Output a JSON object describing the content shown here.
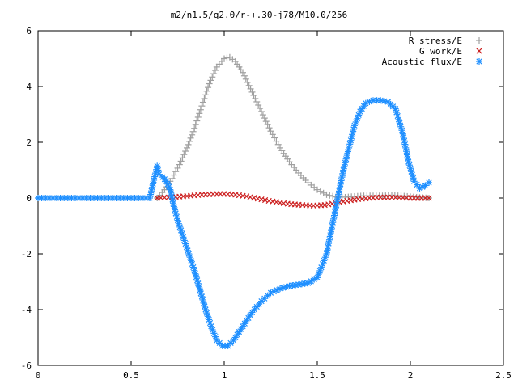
{
  "chart_data": {
    "type": "scatter",
    "title": "m2/n1.5/q2.0/r-+.30-j78/M10.0/256",
    "xlabel": "",
    "ylabel": "",
    "xlim": [
      0,
      2.5
    ],
    "ylim": [
      -6,
      6
    ],
    "x_ticks": [
      "0",
      "0.5",
      "1",
      "1.5",
      "2",
      "2.5"
    ],
    "y_ticks": [
      "-6",
      "-4",
      "-2",
      "0",
      "2",
      "4",
      "6"
    ],
    "grid": false,
    "legend_position": "top-right",
    "series": [
      {
        "name": "R stress/E",
        "marker": "plus",
        "color": "#a0a0a0",
        "x": [
          0.64,
          0.68,
          0.72,
          0.76,
          0.8,
          0.84,
          0.88,
          0.92,
          0.96,
          1.0,
          1.03,
          1.06,
          1.1,
          1.15,
          1.2,
          1.25,
          1.3,
          1.35,
          1.4,
          1.45,
          1.5,
          1.55,
          1.6,
          1.65,
          1.7,
          1.75,
          1.8,
          1.85,
          1.9,
          1.95,
          2.0,
          2.05,
          2.1
        ],
        "y": [
          0.0,
          0.3,
          0.7,
          1.2,
          1.8,
          2.5,
          3.3,
          4.1,
          4.7,
          5.0,
          5.05,
          4.9,
          4.5,
          3.8,
          3.1,
          2.4,
          1.8,
          1.3,
          0.9,
          0.55,
          0.3,
          0.12,
          0.04,
          0.03,
          0.06,
          0.08,
          0.08,
          0.08,
          0.09,
          0.08,
          0.05,
          0.02,
          0.0
        ]
      },
      {
        "name": "G work/E",
        "marker": "cross",
        "color": "#cc2020",
        "x": [
          0.64,
          0.7,
          0.76,
          0.82,
          0.88,
          0.94,
          1.0,
          1.06,
          1.12,
          1.18,
          1.24,
          1.3,
          1.36,
          1.42,
          1.48,
          1.54,
          1.6,
          1.66,
          1.72,
          1.78,
          1.84,
          1.9,
          1.96,
          2.02,
          2.1
        ],
        "y": [
          0.0,
          0.02,
          0.05,
          0.08,
          0.12,
          0.14,
          0.15,
          0.12,
          0.06,
          -0.02,
          -0.1,
          -0.17,
          -0.22,
          -0.25,
          -0.27,
          -0.25,
          -0.18,
          -0.1,
          -0.04,
          0.0,
          0.02,
          0.02,
          0.01,
          0.0,
          0.0
        ]
      },
      {
        "name": "Acoustic flux/E",
        "marker": "star",
        "color": "#1e8fff",
        "x": [
          0.0,
          0.1,
          0.2,
          0.3,
          0.4,
          0.5,
          0.6,
          0.64,
          0.65,
          0.67,
          0.69,
          0.71,
          0.73,
          0.75,
          0.78,
          0.81,
          0.84,
          0.87,
          0.9,
          0.93,
          0.96,
          0.99,
          1.02,
          1.05,
          1.1,
          1.15,
          1.2,
          1.25,
          1.3,
          1.35,
          1.4,
          1.45,
          1.5,
          1.55,
          1.58,
          1.61,
          1.64,
          1.67,
          1.7,
          1.73,
          1.76,
          1.8,
          1.84,
          1.88,
          1.92,
          1.96,
          1.99,
          2.02,
          2.05,
          2.08,
          2.1
        ],
        "y": [
          0.0,
          0.0,
          0.0,
          0.0,
          0.0,
          0.0,
          0.0,
          1.15,
          0.85,
          0.75,
          0.6,
          0.3,
          -0.3,
          -0.8,
          -1.4,
          -2.0,
          -2.6,
          -3.3,
          -4.0,
          -4.6,
          -5.1,
          -5.3,
          -5.3,
          -5.1,
          -4.6,
          -4.1,
          -3.7,
          -3.4,
          -3.25,
          -3.15,
          -3.1,
          -3.05,
          -2.85,
          -2.0,
          -1.0,
          0.0,
          1.0,
          1.8,
          2.6,
          3.1,
          3.4,
          3.5,
          3.5,
          3.45,
          3.2,
          2.3,
          1.3,
          0.6,
          0.35,
          0.45,
          0.55
        ]
      }
    ]
  }
}
